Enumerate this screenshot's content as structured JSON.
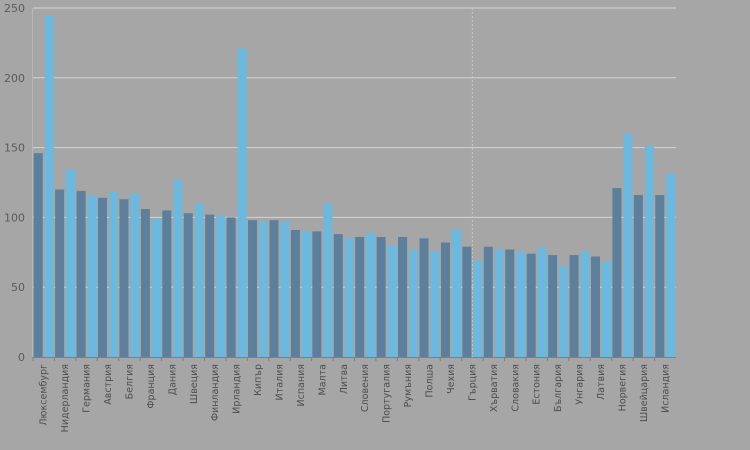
{
  "chart_data": {
    "type": "bar",
    "ylim": [
      0,
      250
    ],
    "yticks": [
      0,
      50,
      100,
      150,
      200,
      250
    ],
    "grid": true,
    "colors": {
      "series_a": "#5c7f9c",
      "series_b": "#6bb9df",
      "background": "#a6a6a6",
      "grid": "#d4d4d4",
      "highlight_line": "#c8c8c8"
    },
    "highlight_category": "Гърция",
    "categories": [
      "Люксембург",
      "Нидерландия",
      "Германия",
      "Австрия",
      "Белгия",
      "Франция",
      "Дания",
      "Швеция",
      "Финландия",
      "Ирландия",
      "Кипър",
      "Италия",
      "Испания",
      "Малта",
      "Литва",
      "Словения",
      "Португалия",
      "Румъния",
      "Полша",
      "Чехия",
      "Гърция",
      "Хърватия",
      "Словакия",
      "Естония",
      "България",
      "Унгария",
      "Латвия",
      "Норвегия",
      "Швейцария",
      "Исландия"
    ],
    "series": [
      {
        "values": [
          146,
          120,
          119,
          114,
          113,
          106,
          105,
          103,
          102,
          100,
          98,
          98,
          91,
          90,
          88,
          86,
          86,
          86,
          85,
          82,
          79,
          79,
          77,
          74,
          73,
          73,
          72,
          121,
          116,
          116
        ]
      },
      {
        "values": [
          245,
          134,
          116,
          119,
          117,
          99,
          127,
          110,
          101,
          221,
          97,
          97,
          90,
          110,
          85,
          89,
          80,
          77,
          76,
          91,
          69,
          77,
          75,
          79,
          65,
          76,
          68,
          160,
          151,
          131
        ]
      }
    ]
  }
}
